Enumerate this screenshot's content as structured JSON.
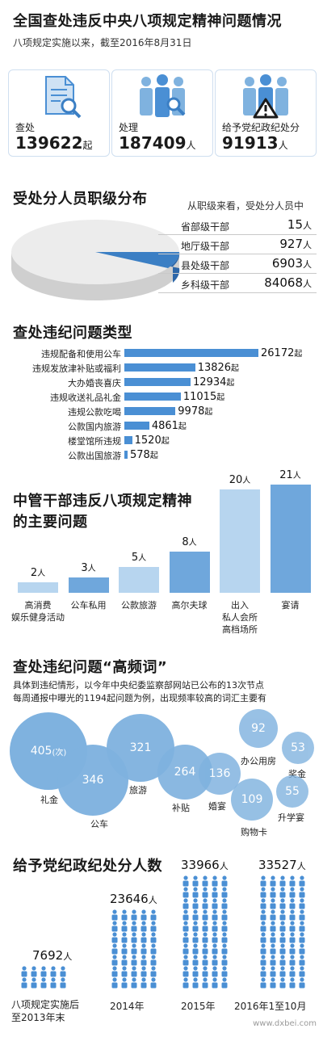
{
  "header": {
    "title": "全国查处违反中央八项规定精神问题情况",
    "subtitle": "八项规定实施以来，截至2016年8月31日"
  },
  "cards": [
    {
      "label": "查处",
      "value": "139622",
      "unit": "起",
      "icon": "document-magnifier-icon"
    },
    {
      "label": "处理",
      "value": "187409",
      "unit": "人",
      "icon": "people-magnifier-icon"
    },
    {
      "label": "给予党纪政纪处分",
      "value": "91913",
      "unit": "人",
      "icon": "people-warning-icon"
    }
  ],
  "rank_section": {
    "title": "受处分人员职级分布",
    "intro": "从职级来看，受处分人员中",
    "levels": [
      {
        "name": "省部级干部",
        "value": 15,
        "unit": "人"
      },
      {
        "name": "地厅级干部",
        "value": 927,
        "unit": "人"
      },
      {
        "name": "县处级干部",
        "value": 6903,
        "unit": "人"
      },
      {
        "name": "乡科级干部",
        "value": 84068,
        "unit": "人"
      }
    ],
    "colors": {
      "main": "#ececec",
      "highlight": "#3b7fc4"
    }
  },
  "types_section": {
    "title": "查处违纪问题类型",
    "unit": "起",
    "chart_data": {
      "type": "bar",
      "orientation": "horizontal",
      "categories": [
        "违规配备和使用公车",
        "违规发放津补贴或福利",
        "大办婚丧喜庆",
        "违规收送礼品礼金",
        "违规公款吃喝",
        "公款国内旅游",
        "楼堂馆所违规",
        "公款出国旅游"
      ],
      "values": [
        26172,
        13826,
        12934,
        11015,
        9978,
        4861,
        1520,
        578
      ]
    }
  },
  "cadre_section": {
    "title_line1": "中管干部违反八项规定精神",
    "title_line2": "的主要问题",
    "unit": "人",
    "chart_data": {
      "type": "bar",
      "categories": [
        "高消费\n娱乐健身活动",
        "公车私用",
        "公款旅游",
        "高尔夫球",
        "出入\n私人会所\n高档场所",
        "宴请"
      ],
      "values": [
        2,
        3,
        5,
        8,
        20,
        21
      ]
    },
    "colors": {
      "light": "#b7d5ef",
      "dark": "#6fa7dc"
    }
  },
  "words_section": {
    "title": "查处违纪问题“高频词”",
    "desc_line1": "具体到违纪情形，以今年中央纪委监察部网站已公布的13次节点",
    "desc_line2": "每周通报中曝光的1194起问题为例，出现频率较高的词汇主要有",
    "first_unit": "(次)",
    "chart_data": {
      "type": "bubble",
      "categories": [
        "礼金",
        "公车",
        "旅游",
        "补贴",
        "婚宴",
        "购物卡",
        "办公用房",
        "奖金",
        "升学宴"
      ],
      "values": [
        405,
        346,
        321,
        264,
        136,
        109,
        92,
        53,
        55
      ]
    }
  },
  "punish_section": {
    "title": "给予党纪政纪处分人数",
    "unit": "人",
    "chart_data": {
      "type": "pictogram",
      "categories": [
        "八项规定实施后\n至2013年末",
        "2014年",
        "2015年",
        "2016年1至10月"
      ],
      "values": [
        7692,
        23646,
        33966,
        33527
      ]
    },
    "colors": {
      "person": "#4a8fd4"
    }
  },
  "watermark": "www.dxbei.com"
}
